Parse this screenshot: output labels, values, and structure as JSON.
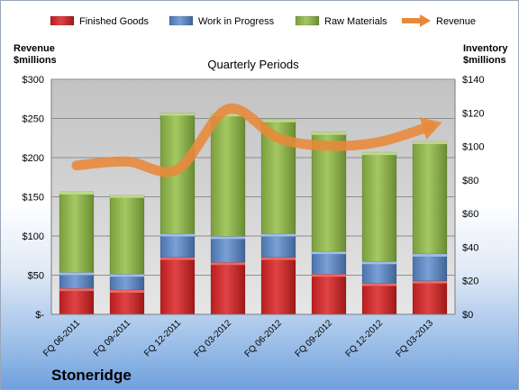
{
  "company": "Stoneridge",
  "colors": {
    "finished_goods": "#cc2a2a",
    "work_in_progress": "#5b86c4",
    "raw_materials": "#8ab04a",
    "revenue": "#e8893a"
  },
  "chart_data": {
    "type": "bar",
    "stacked": true,
    "title": "Quarterly Periods",
    "ylabel_left": "Revenue\n$millions",
    "ylabel_right": "Inventory\n$millions",
    "left_axis": {
      "min": 0,
      "max": 300,
      "ticks": [
        "$-",
        "$50",
        "$100",
        "$150",
        "$200",
        "$250",
        "$300"
      ]
    },
    "right_axis": {
      "min": 0,
      "max": 140,
      "ticks": [
        "$0",
        "$20",
        "$40",
        "$60",
        "$80",
        "$100",
        "$120",
        "$140"
      ]
    },
    "grid": true,
    "legend_position": "top",
    "categories": [
      "FQ 06-2011",
      "FQ 09-2011",
      "FQ 12-2011",
      "FQ 03-2012",
      "FQ 06-2012",
      "FQ 09-2012",
      "FQ 12-2012",
      "FQ 03-2013"
    ],
    "series": [
      {
        "name": "Finished Goods",
        "axis": "right",
        "kind": "bar",
        "values": [
          15.5,
          14.5,
          34,
          31,
          34,
          24,
          18.5,
          20
        ]
      },
      {
        "name": "Work in Progress",
        "axis": "right",
        "kind": "bar",
        "values": [
          9.5,
          9.5,
          14,
          15.5,
          14,
          13.5,
          13,
          16
        ]
      },
      {
        "name": "Raw Materials",
        "axis": "right",
        "kind": "bar",
        "values": [
          48,
          47,
          72,
          73,
          68,
          71,
          65,
          67
        ]
      },
      {
        "name": "Revenue",
        "axis": "left",
        "kind": "line",
        "values": [
          190,
          195,
          185,
          262,
          225,
          215,
          220,
          240
        ]
      }
    ]
  }
}
